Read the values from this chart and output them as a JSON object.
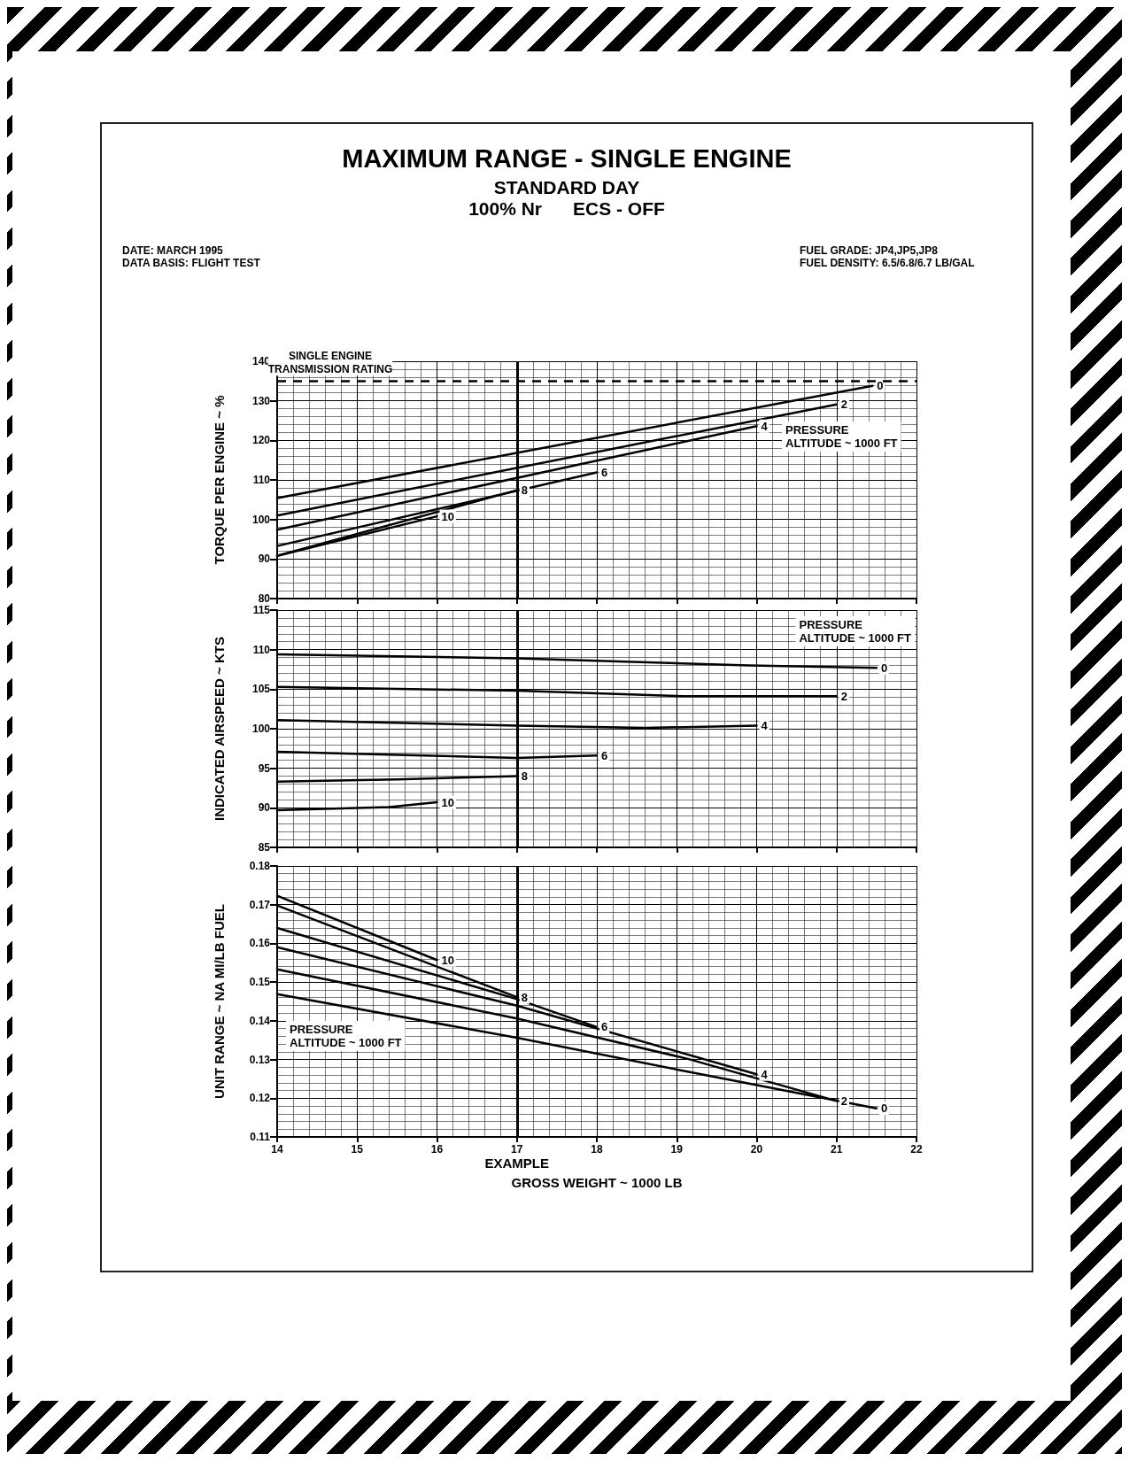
{
  "chart_data": [
    {
      "type": "line",
      "title": "MAXIMUM RANGE - SINGLE ENGINE",
      "subtitle": "STANDARD DAY\n100% Nr      ECS - OFF",
      "annotations": [
        "DATE: MARCH 1995",
        "DATA BASIS: FLIGHT TEST",
        "FUEL GRADE: JP4,JP5,JP8",
        "FUEL DENSITY: 6.5/6.8/6.7 LB/GAL"
      ],
      "legend_title": "PRESSURE\nALTITUDE ~ 1000 FT",
      "ylabel": "TORQUE PER ENGINE ~ %",
      "xlim": [
        14,
        22
      ],
      "xticks": [
        14,
        15,
        16,
        17,
        18,
        19,
        20,
        21,
        22
      ],
      "ylim": [
        80,
        140
      ],
      "yticks": [
        80,
        90,
        100,
        110,
        120,
        130,
        140
      ],
      "tick_labels": "y",
      "grid": true,
      "legend": false,
      "marker": "none",
      "line_style": "solid",
      "ref_lines": [
        {
          "axis": "y",
          "value": 135,
          "label": "SINGLE ENGINE\nTRANSMISSION RATING",
          "line_style": "dashed"
        },
        {
          "axis": "x",
          "value": 17,
          "label": null,
          "line_style": "solid"
        }
      ],
      "series": [
        {
          "name": "0",
          "color": "#000000",
          "x": [
            14,
            21.45
          ],
          "values": [
            105.4,
            133.8
          ]
        },
        {
          "name": "2",
          "color": "#000000",
          "x": [
            14,
            21
          ],
          "values": [
            101,
            129.1
          ]
        },
        {
          "name": "4",
          "color": "#000000",
          "x": [
            14,
            20
          ],
          "values": [
            97.4,
            123.6
          ]
        },
        {
          "name": "6",
          "color": "#000000",
          "x": [
            14,
            18
          ],
          "values": [
            93.3,
            111.9
          ]
        },
        {
          "name": "8",
          "color": "#000000",
          "x": [
            14,
            17
          ],
          "values": [
            90.8,
            107.4
          ]
        },
        {
          "name": "10",
          "color": "#000000",
          "x": [
            14,
            16
          ],
          "values": [
            90.8,
            100.8
          ]
        }
      ]
    },
    {
      "type": "line",
      "legend_title": "PRESSURE\nALTITUDE ~ 1000 FT",
      "ylabel": "INDICATED AIRSPEED ~ KTS",
      "xlim": [
        14,
        22
      ],
      "xticks": [
        14,
        15,
        16,
        17,
        18,
        19,
        20,
        21,
        22
      ],
      "ylim": [
        85,
        115
      ],
      "yticks": [
        85,
        90,
        95,
        100,
        105,
        110,
        115
      ],
      "tick_labels": "y",
      "grid": true,
      "legend": false,
      "marker": "none",
      "line_style": "solid",
      "ref_lines": [
        {
          "axis": "x",
          "value": 17,
          "label": null,
          "line_style": "solid"
        }
      ],
      "series": [
        {
          "name": "0",
          "color": "#000000",
          "x": [
            14,
            17,
            19.9,
            21.5
          ],
          "values": [
            109.4,
            108.9,
            108,
            107.7
          ]
        },
        {
          "name": "2",
          "color": "#000000",
          "x": [
            14,
            17,
            19.1,
            21
          ],
          "values": [
            105.3,
            104.8,
            104.1,
            104.1
          ]
        },
        {
          "name": "4",
          "color": "#000000",
          "x": [
            14,
            17,
            18.6,
            20
          ],
          "values": [
            101.1,
            100.4,
            100.1,
            100.4
          ]
        },
        {
          "name": "6",
          "color": "#000000",
          "x": [
            14,
            15.5,
            17,
            18
          ],
          "values": [
            97.1,
            96.7,
            96.3,
            96.6
          ]
        },
        {
          "name": "8",
          "color": "#000000",
          "x": [
            14,
            15.5,
            17
          ],
          "values": [
            93.3,
            93.6,
            94
          ]
        },
        {
          "name": "10",
          "color": "#000000",
          "x": [
            14,
            15.4,
            16
          ],
          "values": [
            89.7,
            90.1,
            90.7
          ]
        }
      ]
    },
    {
      "type": "line",
      "legend_title": "PRESSURE\nALTITUDE ~ 1000 FT",
      "ylabel": "UNIT RANGE ~ NA MI/LB FUEL",
      "xlabel": "GROSS WEIGHT ~ 1000 LB",
      "xlim": [
        14,
        22
      ],
      "xticks": [
        14,
        15,
        16,
        17,
        18,
        19,
        20,
        21,
        22
      ],
      "ylim": [
        0.11,
        0.18
      ],
      "yticks": [
        0.11,
        0.12,
        0.13,
        0.14,
        0.15,
        0.16,
        0.17,
        0.18
      ],
      "grid": true,
      "legend": false,
      "marker": "none",
      "line_style": "solid",
      "ref_lines": [
        {
          "axis": "x",
          "value": 17,
          "label": "EXAMPLE",
          "line_style": "solid"
        }
      ],
      "series": [
        {
          "name": "0",
          "color": "#000000",
          "x": [
            14,
            17,
            19.15,
            21.5
          ],
          "values": [
            0.1469,
            0.1356,
            0.1268,
            0.1174
          ]
        },
        {
          "name": "2",
          "color": "#000000",
          "x": [
            14,
            17,
            19.15,
            21
          ],
          "values": [
            0.1533,
            0.1406,
            0.1301,
            0.1193
          ]
        },
        {
          "name": "4",
          "color": "#000000",
          "x": [
            14,
            17,
            20
          ],
          "values": [
            0.159,
            0.1439,
            0.1262
          ]
        },
        {
          "name": "6",
          "color": "#000000",
          "x": [
            14,
            17,
            18
          ],
          "values": [
            0.164,
            0.1456,
            0.1384
          ]
        },
        {
          "name": "8",
          "color": "#000000",
          "x": [
            14,
            17
          ],
          "values": [
            0.1698,
            0.1461
          ]
        },
        {
          "name": "10",
          "color": "#000000",
          "x": [
            14,
            16
          ],
          "values": [
            0.1723,
            0.1557
          ]
        }
      ]
    }
  ]
}
